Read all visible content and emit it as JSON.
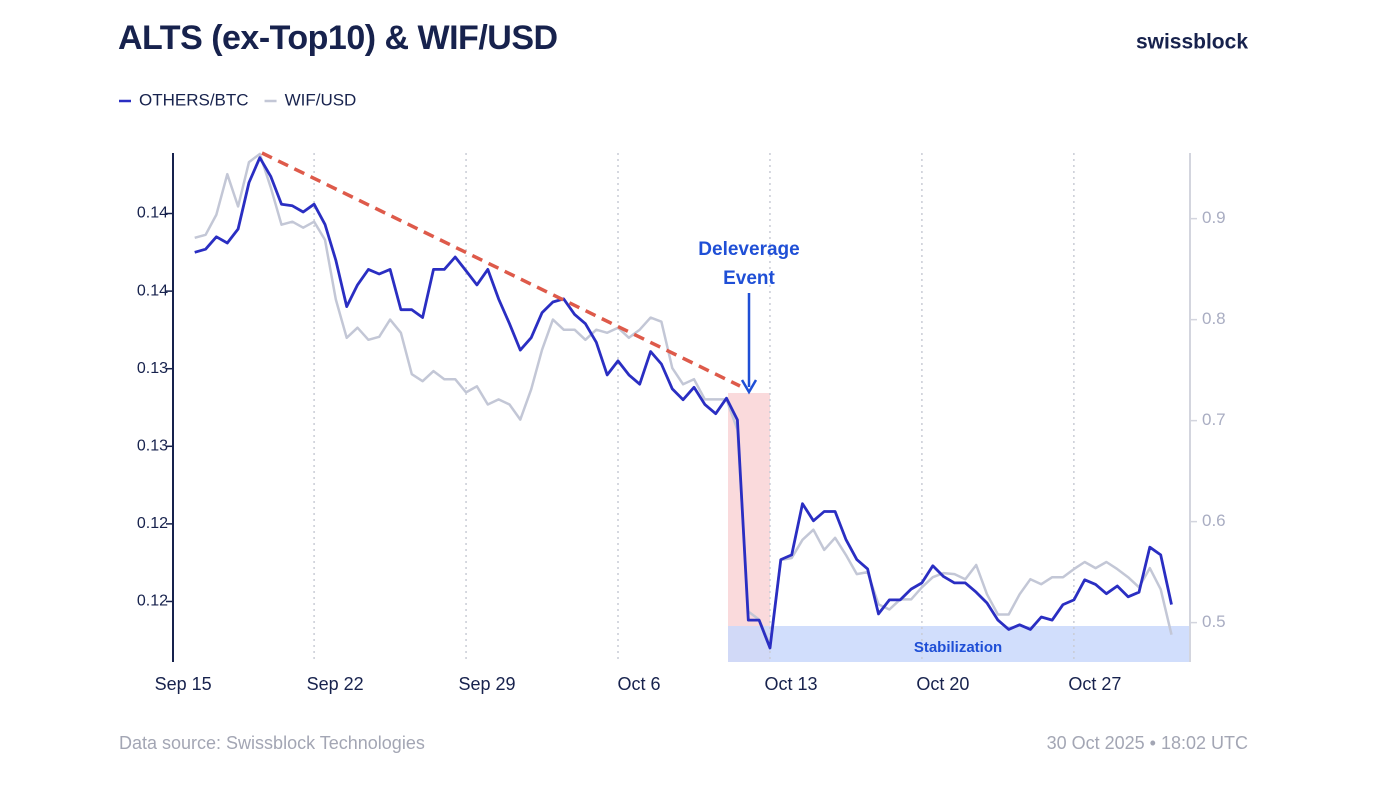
{
  "chart_data": {
    "type": "line",
    "title": "ALTS (ex-Top10) & WIF/USD",
    "brand": "swissblock",
    "source": "Data source: Swissblock Technologies",
    "timestamp": "30 Oct 2025 • 18:02 UTC",
    "annotations": [
      "Deleverage",
      "Event",
      "Stabilization"
    ],
    "x": [
      1.5,
      2,
      2.5,
      3,
      3.5,
      4,
      4.5,
      5,
      5.5,
      6,
      6.5,
      7,
      7.5,
      8,
      8.5,
      9,
      9.5,
      10,
      10.5,
      11,
      11.5,
      12,
      12.5,
      13,
      13.5,
      14,
      14.5,
      15,
      15.5,
      16,
      16.5,
      17,
      17.5,
      18,
      18.5,
      19,
      19.5,
      20,
      20.5,
      21,
      21.5,
      22,
      22.5,
      23,
      23.5,
      24,
      24.5,
      25,
      25.5,
      26,
      26.5,
      27,
      27.5,
      28,
      28.5,
      29,
      29.5,
      30,
      30.5,
      31,
      31.5,
      32,
      32.5,
      33,
      33.5,
      34,
      34.5,
      35,
      35.5,
      36,
      36.5,
      37,
      37.5,
      38,
      38.5,
      39,
      39.5,
      40,
      40.5,
      41,
      41.5,
      42,
      42.5,
      43,
      43.5,
      44,
      44.5,
      45,
      45.5,
      46,
      46.5
    ],
    "xlim": [
      0.5,
      47.35
    ],
    "xticks": [
      {
        "value": 0,
        "label": "Sep 15"
      },
      {
        "value": 7,
        "label": "Sep 22"
      },
      {
        "value": 14,
        "label": "Sep 29"
      },
      {
        "value": 21,
        "label": "Oct 6"
      },
      {
        "value": 28,
        "label": "Oct 13"
      },
      {
        "value": 35,
        "label": "Oct 20"
      },
      {
        "value": 42,
        "label": "Oct 27"
      }
    ],
    "ylim": [
      0.1151,
      0.1479
    ],
    "yticks": [
      {
        "value": 0.144,
        "label": "0.14"
      },
      {
        "value": 0.139,
        "label": "0.14"
      },
      {
        "value": 0.134,
        "label": "0.13"
      },
      {
        "value": 0.129,
        "label": "0.13"
      },
      {
        "value": 0.124,
        "label": "0.12"
      },
      {
        "value": 0.119,
        "label": "0.12"
      }
    ],
    "y2lim": [
      0.461,
      0.965
    ],
    "y2ticks": [
      0.9,
      0.8,
      0.7,
      0.6,
      0.5
    ],
    "grid": true,
    "series": [
      {
        "name": "WIF/USD",
        "color": "#c3c7d6",
        "axis": "y2",
        "values": [
          0.881,
          0.884,
          0.904,
          0.944,
          0.912,
          0.956,
          0.964,
          0.931,
          0.894,
          0.897,
          0.891,
          0.897,
          0.879,
          0.82,
          0.782,
          0.792,
          0.78,
          0.783,
          0.8,
          0.787,
          0.746,
          0.739,
          0.749,
          0.741,
          0.741,
          0.728,
          0.734,
          0.716,
          0.721,
          0.716,
          0.701,
          0.731,
          0.77,
          0.8,
          0.79,
          0.79,
          0.78,
          0.79,
          0.787,
          0.792,
          0.782,
          0.79,
          0.802,
          0.798,
          0.752,
          0.736,
          0.741,
          0.721,
          0.721,
          0.721,
          0.691,
          0.511,
          0.503,
          0.478,
          0.562,
          0.564,
          0.582,
          0.592,
          0.572,
          0.584,
          0.567,
          0.548,
          0.55,
          0.518,
          0.513,
          0.523,
          0.523,
          0.535,
          0.545,
          0.549,
          0.548,
          0.543,
          0.557,
          0.528,
          0.508,
          0.508,
          0.528,
          0.543,
          0.538,
          0.545,
          0.545,
          0.553,
          0.56,
          0.554,
          0.56,
          0.553,
          0.545,
          0.535,
          0.554,
          0.533,
          0.488
        ]
      },
      {
        "name": "OTHERS/BTC",
        "color": "#2a2ec2",
        "values": [
          0.1415,
          0.1417,
          0.1425,
          0.1421,
          0.143,
          0.146,
          0.1476,
          0.1464,
          0.1446,
          0.1445,
          0.1441,
          0.1446,
          0.1433,
          0.141,
          0.138,
          0.1394,
          0.1404,
          0.1401,
          0.1404,
          0.1378,
          0.1378,
          0.1373,
          0.1404,
          0.1404,
          0.1412,
          0.1403,
          0.1394,
          0.1404,
          0.1385,
          0.1369,
          0.1352,
          0.136,
          0.1376,
          0.1383,
          0.1385,
          0.1375,
          0.1369,
          0.1357,
          0.1336,
          0.1345,
          0.1336,
          0.133,
          0.1351,
          0.1343,
          0.1327,
          0.132,
          0.1328,
          0.1317,
          0.1311,
          0.1321,
          0.1307,
          0.1178,
          0.1178,
          0.116,
          0.1217,
          0.122,
          0.1253,
          0.1242,
          0.1248,
          0.1248,
          0.123,
          0.1217,
          0.1211,
          0.1182,
          0.1191,
          0.1191,
          0.1198,
          0.1202,
          0.1213,
          0.1206,
          0.1202,
          0.1202,
          0.1196,
          0.1189,
          0.1178,
          0.1172,
          0.1175,
          0.1172,
          0.118,
          0.1178,
          0.1188,
          0.1191,
          0.1204,
          0.1201,
          0.1195,
          0.12,
          0.1193,
          0.1196,
          0.1225,
          0.122,
          0.1188
        ]
      }
    ]
  }
}
